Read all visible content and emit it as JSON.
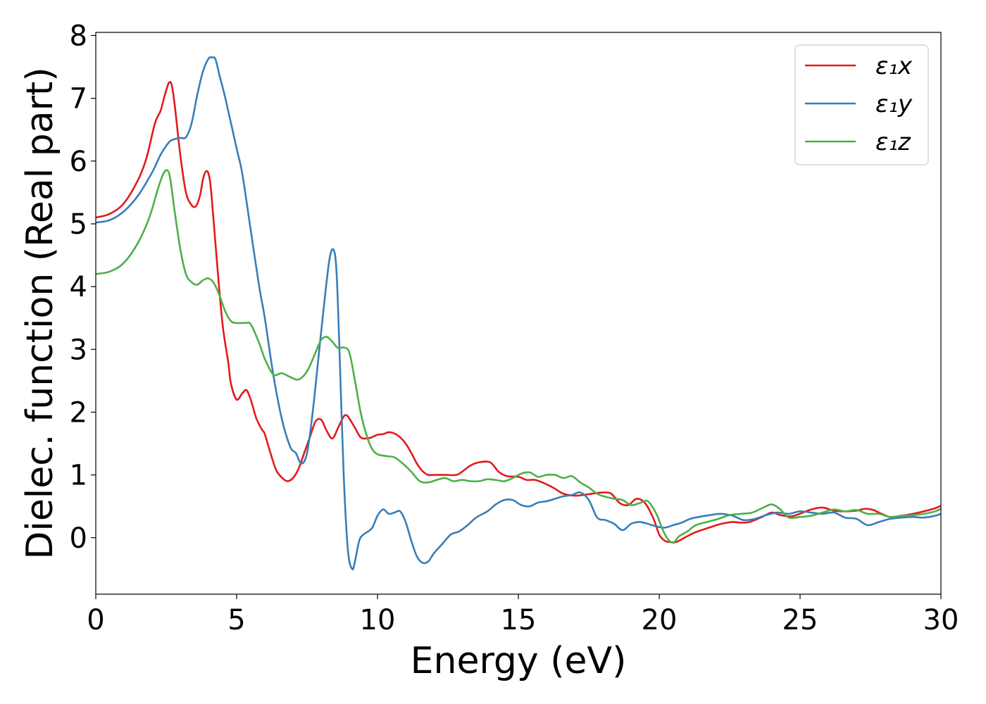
{
  "chart_data": {
    "type": "line",
    "title": "",
    "xlabel": "Energy (eV)",
    "ylabel": "Dielec. function (Real part)",
    "xlim": [
      0,
      30
    ],
    "ylim": [
      -0.9,
      8.05
    ],
    "xticks": [
      0,
      5,
      10,
      15,
      20,
      25,
      30
    ],
    "yticks": [
      0,
      1,
      2,
      3,
      4,
      5,
      6,
      7,
      8
    ],
    "grid": false,
    "legend_position": "top-right",
    "series": [
      {
        "name": "ε₁x",
        "color": "#e41a1c",
        "x": [
          0,
          0.5,
          1.0,
          1.5,
          1.8,
          2.1,
          2.3,
          2.45,
          2.6,
          2.7,
          2.8,
          3.0,
          3.2,
          3.4,
          3.55,
          3.7,
          3.8,
          3.9,
          4.0,
          4.1,
          4.3,
          4.5,
          4.7,
          4.8,
          5.0,
          5.2,
          5.35,
          5.5,
          5.7,
          5.9,
          6.0,
          6.2,
          6.4,
          6.6,
          6.8,
          7.0,
          7.2,
          7.4,
          7.6,
          7.8,
          8.0,
          8.2,
          8.4,
          8.6,
          8.8,
          8.9,
          9.0,
          9.2,
          9.4,
          9.6,
          9.8,
          10.0,
          10.2,
          10.4,
          10.6,
          10.8,
          11.0,
          11.2,
          11.4,
          11.6,
          11.8,
          12.0,
          12.4,
          12.8,
          13.0,
          13.3,
          13.6,
          14.0,
          14.3,
          14.6,
          15.0,
          15.3,
          15.6,
          16.0,
          16.3,
          16.6,
          17.0,
          17.3,
          17.6,
          18.0,
          18.3,
          18.6,
          18.9,
          19.2,
          19.5,
          19.8,
          20.0,
          20.2,
          20.4,
          20.6,
          20.9,
          21.2,
          21.5,
          21.9,
          22.2,
          22.6,
          22.9,
          23.2,
          23.6,
          24.0,
          24.3,
          24.7,
          25.1,
          25.4,
          25.8,
          26.2,
          26.6,
          27.0,
          27.3,
          27.6,
          27.9,
          28.2,
          28.6,
          29.0,
          29.4,
          29.8,
          30.0
        ],
        "values": [
          5.1,
          5.16,
          5.33,
          5.7,
          6.05,
          6.6,
          6.8,
          7.05,
          7.25,
          7.2,
          6.9,
          6.1,
          5.5,
          5.3,
          5.28,
          5.45,
          5.7,
          5.83,
          5.8,
          5.5,
          4.4,
          3.4,
          2.8,
          2.45,
          2.2,
          2.3,
          2.35,
          2.2,
          1.9,
          1.72,
          1.65,
          1.35,
          1.08,
          0.96,
          0.9,
          0.95,
          1.1,
          1.35,
          1.6,
          1.85,
          1.88,
          1.7,
          1.58,
          1.75,
          1.93,
          1.95,
          1.9,
          1.75,
          1.6,
          1.58,
          1.6,
          1.64,
          1.65,
          1.68,
          1.66,
          1.6,
          1.5,
          1.35,
          1.18,
          1.06,
          1.0,
          1.0,
          1.0,
          1.0,
          1.05,
          1.15,
          1.2,
          1.2,
          1.05,
          0.98,
          0.97,
          0.92,
          0.92,
          0.85,
          0.78,
          0.7,
          0.67,
          0.68,
          0.7,
          0.72,
          0.7,
          0.55,
          0.52,
          0.62,
          0.55,
          0.3,
          0.05,
          -0.05,
          -0.07,
          -0.07,
          0.0,
          0.07,
          0.12,
          0.18,
          0.22,
          0.25,
          0.24,
          0.25,
          0.32,
          0.4,
          0.36,
          0.34,
          0.4,
          0.45,
          0.48,
          0.43,
          0.42,
          0.43,
          0.46,
          0.44,
          0.38,
          0.33,
          0.35,
          0.38,
          0.42,
          0.47,
          0.51
        ]
      },
      {
        "name": "ε₁y",
        "color": "#377eb8",
        "x": [
          0,
          0.5,
          1.0,
          1.5,
          2.0,
          2.3,
          2.6,
          2.8,
          3.0,
          3.2,
          3.4,
          3.6,
          3.8,
          4.0,
          4.15,
          4.25,
          4.4,
          4.6,
          5.0,
          5.2,
          5.5,
          5.8,
          6.0,
          6.3,
          6.6,
          6.9,
          7.1,
          7.3,
          7.5,
          7.7,
          7.9,
          8.1,
          8.3,
          8.45,
          8.55,
          8.65,
          8.8,
          8.95,
          9.1,
          9.2,
          9.35,
          9.5,
          9.8,
          10.0,
          10.2,
          10.4,
          10.6,
          10.8,
          11.0,
          11.2,
          11.4,
          11.6,
          11.8,
          12.0,
          12.3,
          12.6,
          12.9,
          13.2,
          13.5,
          13.9,
          14.2,
          14.5,
          14.8,
          15.1,
          15.4,
          15.7,
          16.0,
          16.3,
          16.6,
          16.9,
          17.2,
          17.5,
          17.8,
          18.1,
          18.4,
          18.7,
          19.0,
          19.3,
          19.6,
          19.9,
          20.2,
          20.5,
          20.8,
          21.1,
          21.4,
          21.8,
          22.2,
          22.6,
          23.0,
          23.4,
          23.8,
          24.2,
          24.6,
          25.0,
          25.4,
          25.8,
          26.2,
          26.6,
          27.0,
          27.4,
          27.8,
          28.2,
          28.6,
          29.0,
          29.4,
          29.8,
          30.0
        ],
        "values": [
          5.02,
          5.06,
          5.2,
          5.45,
          5.82,
          6.1,
          6.3,
          6.35,
          6.37,
          6.38,
          6.6,
          7.05,
          7.42,
          7.63,
          7.65,
          7.62,
          7.35,
          7.0,
          6.2,
          5.8,
          4.9,
          4.0,
          3.5,
          2.6,
          1.9,
          1.45,
          1.35,
          1.18,
          1.35,
          2.0,
          2.85,
          3.7,
          4.45,
          4.58,
          4.2,
          3.0,
          1.0,
          -0.2,
          -0.5,
          -0.38,
          -0.05,
          0.05,
          0.15,
          0.35,
          0.45,
          0.38,
          0.4,
          0.42,
          0.25,
          -0.05,
          -0.3,
          -0.4,
          -0.38,
          -0.25,
          -0.1,
          0.05,
          0.1,
          0.2,
          0.32,
          0.42,
          0.53,
          0.6,
          0.6,
          0.52,
          0.5,
          0.56,
          0.58,
          0.62,
          0.66,
          0.68,
          0.72,
          0.6,
          0.32,
          0.28,
          0.22,
          0.12,
          0.22,
          0.25,
          0.22,
          0.18,
          0.16,
          0.2,
          0.24,
          0.3,
          0.33,
          0.36,
          0.38,
          0.35,
          0.28,
          0.3,
          0.36,
          0.4,
          0.38,
          0.42,
          0.4,
          0.38,
          0.4,
          0.32,
          0.3,
          0.2,
          0.25,
          0.3,
          0.32,
          0.33,
          0.32,
          0.35,
          0.38
        ]
      },
      {
        "name": "ε₁z",
        "color": "#4daf4a",
        "x": [
          0,
          0.5,
          1.0,
          1.5,
          1.9,
          2.2,
          2.4,
          2.55,
          2.65,
          2.8,
          3.0,
          3.2,
          3.4,
          3.6,
          3.8,
          4.0,
          4.2,
          4.4,
          4.6,
          4.8,
          5.0,
          5.3,
          5.5,
          5.8,
          6.0,
          6.3,
          6.6,
          6.9,
          7.2,
          7.5,
          7.8,
          8.0,
          8.2,
          8.4,
          8.6,
          8.8,
          9.0,
          9.2,
          9.4,
          9.6,
          9.8,
          10.0,
          10.3,
          10.6,
          10.9,
          11.2,
          11.5,
          11.8,
          12.1,
          12.4,
          12.7,
          13.0,
          13.3,
          13.6,
          13.9,
          14.2,
          14.5,
          14.8,
          15.1,
          15.4,
          15.7,
          16.0,
          16.3,
          16.6,
          16.9,
          17.2,
          17.5,
          17.8,
          18.1,
          18.4,
          18.7,
          19.0,
          19.3,
          19.6,
          19.9,
          20.1,
          20.3,
          20.5,
          20.7,
          21.0,
          21.3,
          21.7,
          22.1,
          22.5,
          22.9,
          23.3,
          23.7,
          24.0,
          24.3,
          24.6,
          25.0,
          25.4,
          25.8,
          26.2,
          26.6,
          27.0,
          27.4,
          27.8,
          28.2,
          28.6,
          29.0,
          29.4,
          29.8,
          30.0
        ],
        "values": [
          4.2,
          4.24,
          4.38,
          4.7,
          5.1,
          5.55,
          5.8,
          5.85,
          5.7,
          5.2,
          4.6,
          4.2,
          4.07,
          4.03,
          4.1,
          4.13,
          4.05,
          3.85,
          3.6,
          3.45,
          3.42,
          3.42,
          3.4,
          3.1,
          2.85,
          2.6,
          2.62,
          2.56,
          2.52,
          2.65,
          2.95,
          3.15,
          3.2,
          3.12,
          3.02,
          3.03,
          2.95,
          2.5,
          2.0,
          1.65,
          1.42,
          1.33,
          1.3,
          1.28,
          1.18,
          1.05,
          0.9,
          0.88,
          0.92,
          0.95,
          0.9,
          0.92,
          0.9,
          0.9,
          0.93,
          0.92,
          0.9,
          0.95,
          1.02,
          1.04,
          0.97,
          1.0,
          1.0,
          0.95,
          0.98,
          0.88,
          0.8,
          0.7,
          0.65,
          0.62,
          0.6,
          0.52,
          0.55,
          0.58,
          0.38,
          0.15,
          -0.02,
          -0.08,
          0.02,
          0.1,
          0.2,
          0.25,
          0.3,
          0.36,
          0.38,
          0.4,
          0.48,
          0.53,
          0.45,
          0.32,
          0.33,
          0.35,
          0.4,
          0.45,
          0.42,
          0.44,
          0.38,
          0.38,
          0.33,
          0.35,
          0.36,
          0.38,
          0.42,
          0.46
        ]
      }
    ]
  }
}
